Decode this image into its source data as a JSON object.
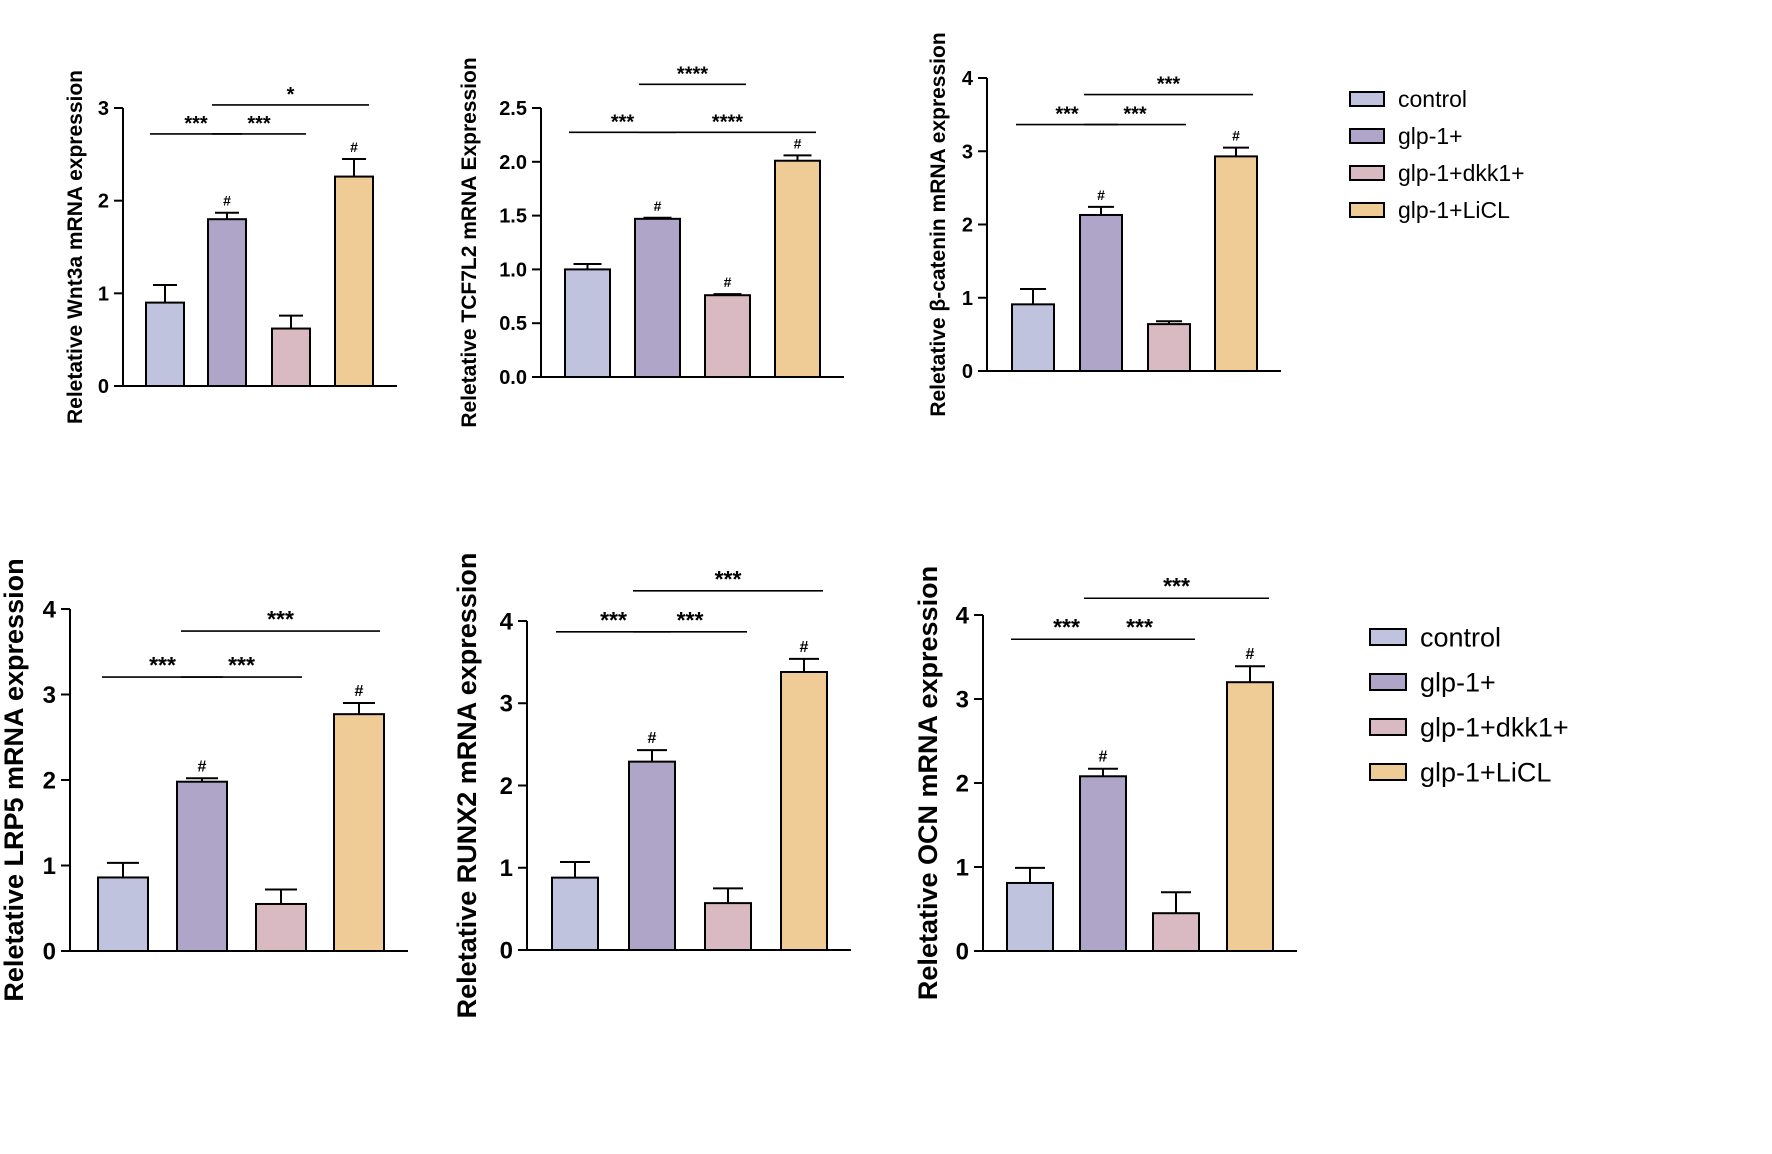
{
  "legend": {
    "entries": [
      {
        "label": "control",
        "color": "#c0c3de"
      },
      {
        "label": "glp-1+",
        "color": "#aea5c9"
      },
      {
        "label": "glp-1+dkk1+",
        "color": "#d9b9c2"
      },
      {
        "label": "glp-1+LiCL",
        "color": "#efcb96"
      }
    ]
  },
  "chart_data": [
    {
      "type": "bar",
      "title": "",
      "ylabel": "Reletative Wnt3a mRNA expression",
      "categories": [
        "control",
        "glp-1+",
        "glp-1+dkk1+",
        "glp-1+LiCL"
      ],
      "values": [
        0.9,
        1.8,
        0.62,
        2.26
      ],
      "errors": [
        0.19,
        0.07,
        0.14,
        0.19
      ],
      "ylim": [
        0,
        3
      ],
      "yticks": [
        "0",
        "1",
        "2",
        "3"
      ],
      "hash_marks": [
        false,
        true,
        false,
        true
      ],
      "significance": [
        {
          "from": 0,
          "to": 1,
          "label": "***",
          "level": 1
        },
        {
          "from": 1,
          "to": 2,
          "label": "***",
          "level": 1
        },
        {
          "from": 1,
          "to": 3,
          "label": "*",
          "level": 2
        }
      ]
    },
    {
      "type": "bar",
      "title": "",
      "ylabel": "Reletative TCF7L2 mRNA Expression",
      "categories": [
        "control",
        "glp-1+",
        "glp-1+dkk1+",
        "glp-1+LiCL"
      ],
      "values": [
        1.0,
        1.47,
        0.76,
        2.01
      ],
      "errors": [
        0.05,
        0.01,
        0.01,
        0.05
      ],
      "ylim": [
        0,
        2.5
      ],
      "yticks": [
        "0.0",
        "0.5",
        "1.0",
        "1.5",
        "2.0",
        "2.5"
      ],
      "hash_marks": [
        false,
        true,
        true,
        true
      ],
      "significance": [
        {
          "from": 0,
          "to": 1,
          "label": "***",
          "level": 1
        },
        {
          "from": 1,
          "to": 3,
          "label": "****",
          "level": 1
        },
        {
          "from": 1,
          "to": 2,
          "label": "****",
          "level": 2
        }
      ]
    },
    {
      "type": "bar",
      "title": "",
      "ylabel": "Reletative β-catenin mRNA expression",
      "categories": [
        "control",
        "glp-1+",
        "glp-1+dkk1+",
        "glp-1+LiCL"
      ],
      "values": [
        0.91,
        2.13,
        0.64,
        2.93
      ],
      "errors": [
        0.21,
        0.11,
        0.04,
        0.12
      ],
      "ylim": [
        0,
        4
      ],
      "yticks": [
        "0",
        "1",
        "2",
        "3",
        "4"
      ],
      "hash_marks": [
        false,
        true,
        false,
        true
      ],
      "significance": [
        {
          "from": 0,
          "to": 1,
          "label": "***",
          "level": 1
        },
        {
          "from": 1,
          "to": 2,
          "label": "***",
          "level": 1
        },
        {
          "from": 1,
          "to": 3,
          "label": "***",
          "level": 2
        }
      ]
    },
    {
      "type": "bar",
      "title": "",
      "ylabel": "Reletative LRP5 mRNA expression",
      "categories": [
        "control",
        "glp-1+",
        "glp-1+dkk1+",
        "glp-1+LiCL"
      ],
      "values": [
        0.86,
        1.98,
        0.55,
        2.77
      ],
      "errors": [
        0.17,
        0.04,
        0.17,
        0.13
      ],
      "ylim": [
        0,
        4
      ],
      "yticks": [
        "0",
        "1",
        "2",
        "3",
        "4"
      ],
      "hash_marks": [
        false,
        true,
        false,
        true
      ],
      "significance": [
        {
          "from": 0,
          "to": 1,
          "label": "***",
          "level": 1
        },
        {
          "from": 1,
          "to": 2,
          "label": "***",
          "level": 1
        },
        {
          "from": 1,
          "to": 3,
          "label": "***",
          "level": 2
        }
      ]
    },
    {
      "type": "bar",
      "title": "",
      "ylabel": "Reletative RUNX2 mRNA expression",
      "categories": [
        "control",
        "glp-1+",
        "glp-1+dkk1+",
        "glp-1+LiCL"
      ],
      "values": [
        0.88,
        2.29,
        0.57,
        3.38
      ],
      "errors": [
        0.19,
        0.14,
        0.18,
        0.16
      ],
      "ylim": [
        0,
        4
      ],
      "yticks": [
        "0",
        "1",
        "2",
        "3",
        "4"
      ],
      "hash_marks": [
        false,
        true,
        false,
        true
      ],
      "significance": [
        {
          "from": 0,
          "to": 1,
          "label": "***",
          "level": 1
        },
        {
          "from": 1,
          "to": 2,
          "label": "***",
          "level": 1
        },
        {
          "from": 1,
          "to": 3,
          "label": "***",
          "level": 2
        }
      ]
    },
    {
      "type": "bar",
      "title": "",
      "ylabel": "Reletative OCN mRNA expression",
      "categories": [
        "control",
        "glp-1+",
        "glp-1+dkk1+",
        "glp-1+LiCL"
      ],
      "values": [
        0.81,
        2.08,
        0.45,
        3.2
      ],
      "errors": [
        0.18,
        0.09,
        0.25,
        0.19
      ],
      "ylim": [
        0,
        4
      ],
      "yticks": [
        "0",
        "1",
        "2",
        "3",
        "4"
      ],
      "hash_marks": [
        false,
        true,
        false,
        true
      ],
      "significance": [
        {
          "from": 0,
          "to": 1,
          "label": "***",
          "level": 1
        },
        {
          "from": 1,
          "to": 2,
          "label": "***",
          "level": 1
        },
        {
          "from": 1,
          "to": 3,
          "label": "***",
          "level": 2
        }
      ]
    }
  ]
}
